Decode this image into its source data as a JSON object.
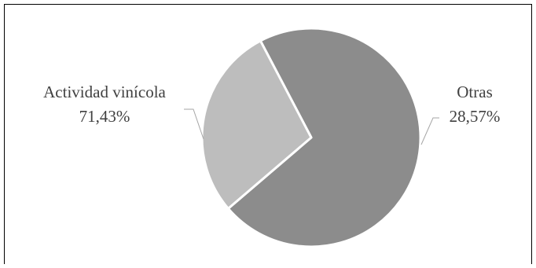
{
  "chart_data": {
    "type": "pie",
    "title": "",
    "slices": [
      {
        "label": "Actividad vinícola",
        "value": 71.43,
        "value_label": "71,43%",
        "color": "#8c8c8c"
      },
      {
        "label": "Otras",
        "value": 28.57,
        "value_label": "28,57%",
        "color": "#bdbdbd"
      }
    ],
    "legend": "none",
    "slice_border_color": "#ffffff",
    "leader_line_color": "#a6a6a6",
    "label_color": "#404040"
  }
}
